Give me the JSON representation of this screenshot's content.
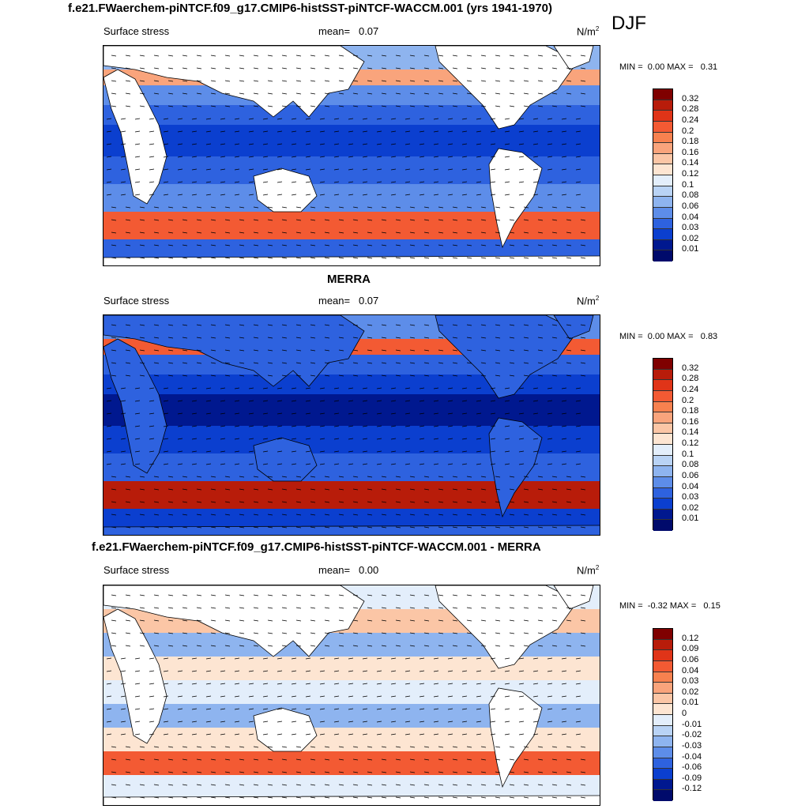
{
  "season": "DJF",
  "panels": [
    {
      "title": "f.e21.FWaerchem-piNTCF.f09_g17.CMIP6-histSST-piNTCF-WACCM.001 (yrs 1941-1970)",
      "variable": "Surface stress",
      "mean_label": "mean=",
      "mean_value": "0.07",
      "units": "N/m",
      "units_sup": "2",
      "min_label": "MIN =",
      "min_value": "0.00",
      "max_label": "MAX =",
      "max_value": "0.31",
      "colorbar": {
        "labels": [
          "0.32",
          "0.28",
          "0.24",
          "0.2",
          "0.18",
          "0.16",
          "0.14",
          "0.12",
          "0.1",
          "0.08",
          "0.06",
          "0.04",
          "0.03",
          "0.02",
          "0.01"
        ],
        "colors": [
          "#7f0000",
          "#b81c0a",
          "#e03418",
          "#f35a33",
          "#f7814f",
          "#f9a47c",
          "#fbc6a6",
          "#fde5d2",
          "#e3eefb",
          "#b9d3f5",
          "#8eb4ef",
          "#5d8de9",
          "#2e62df",
          "#0b3fcf",
          "#00188f",
          "#000a6b"
        ]
      }
    },
    {
      "title": "MERRA",
      "variable": "Surface stress",
      "mean_label": "mean=",
      "mean_value": "0.07",
      "units": "N/m",
      "units_sup": "2",
      "min_label": "MIN =",
      "min_value": "0.00",
      "max_label": "MAX =",
      "max_value": "0.83",
      "colorbar": {
        "labels": [
          "0.32",
          "0.28",
          "0.24",
          "0.2",
          "0.18",
          "0.16",
          "0.14",
          "0.12",
          "0.1",
          "0.08",
          "0.06",
          "0.04",
          "0.03",
          "0.02",
          "0.01"
        ],
        "colors": [
          "#7f0000",
          "#b81c0a",
          "#e03418",
          "#f35a33",
          "#f7814f",
          "#f9a47c",
          "#fbc6a6",
          "#fde5d2",
          "#e3eefb",
          "#b9d3f5",
          "#8eb4ef",
          "#5d8de9",
          "#2e62df",
          "#0b3fcf",
          "#00188f",
          "#000a6b"
        ]
      }
    },
    {
      "title": "f.e21.FWaerchem-piNTCF.f09_g17.CMIP6-histSST-piNTCF-WACCM.001 - MERRA",
      "variable": "Surface stress",
      "mean_label": "mean=",
      "mean_value": "0.00",
      "units": "N/m",
      "units_sup": "2",
      "min_label": "MIN =",
      "min_value": "-0.32",
      "max_label": "MAX =",
      "max_value": "0.15",
      "colorbar": {
        "labels": [
          "0.12",
          "0.09",
          "0.06",
          "0.04",
          "0.03",
          "0.02",
          "0.01",
          "0",
          "-0.01",
          "-0.02",
          "-0.03",
          "-0.04",
          "-0.06",
          "-0.09",
          "-0.12"
        ],
        "colors": [
          "#7f0000",
          "#b81c0a",
          "#e03418",
          "#f35a33",
          "#f7814f",
          "#f9a47c",
          "#fbc6a6",
          "#fde5d2",
          "#e3eefb",
          "#b9d3f5",
          "#8eb4ef",
          "#5d8de9",
          "#2e62df",
          "#0b3fcf",
          "#00188f",
          "#000a6b"
        ]
      }
    }
  ]
}
